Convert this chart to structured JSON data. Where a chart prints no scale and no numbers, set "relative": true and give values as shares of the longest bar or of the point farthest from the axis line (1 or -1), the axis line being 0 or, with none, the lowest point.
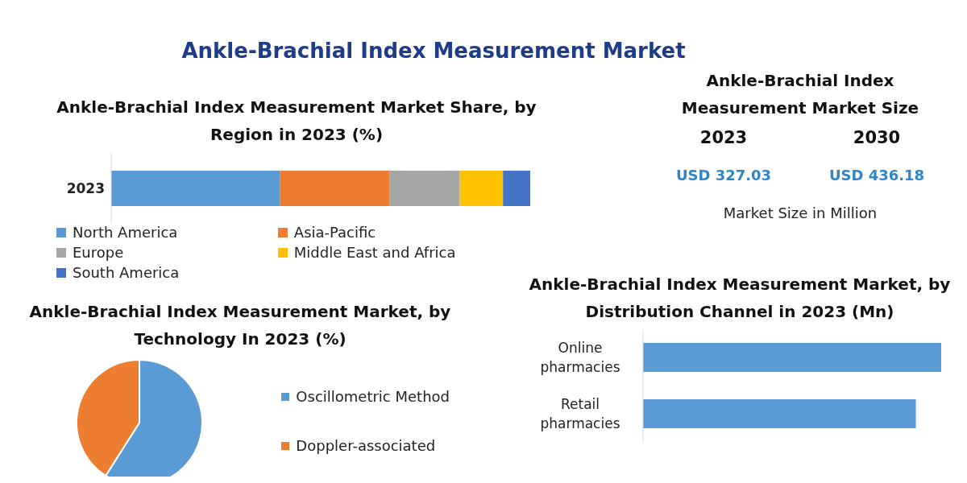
{
  "chart_data": [
    {
      "type": "other",
      "title": "Ankle-Brachial Index Measurement Market"
    },
    {
      "type": "bar",
      "title": "Ankle-Brachial Index Measurement Market Share, by Region in 2023 (%)",
      "orientation": "horizontal",
      "stacked": true,
      "relative": true,
      "categories": [
        "2023"
      ],
      "legend": "bottom",
      "series": [
        {
          "name": "North America",
          "color": "#5b9bd5",
          "values": [
            0.403
          ]
        },
        {
          "name": "Asia-Pacific",
          "color": "#ed7d31",
          "values": [
            0.261
          ]
        },
        {
          "name": "Europe",
          "color": "#a5a5a5",
          "values": [
            0.168
          ]
        },
        {
          "name": "Middle East and Africa",
          "color": "#ffc000",
          "values": [
            0.103
          ]
        },
        {
          "name": "South America",
          "color": "#4472c4",
          "values": [
            0.065
          ]
        }
      ]
    },
    {
      "type": "other",
      "title": "Ankle-Brachial Index Measurement Market Size",
      "annotations": [
        "2023",
        "2030",
        "USD 327.03",
        "USD 436.18",
        "Market Size in Million"
      ]
    },
    {
      "type": "pie",
      "title": "Ankle-Brachial Index Measurement Market, by Technology In 2023 (%)",
      "categories": [
        "Oscillometric Method",
        "Doppler-associated"
      ],
      "values": [
        59,
        41
      ],
      "colors": [
        "#5b9bd5",
        "#ed7d31"
      ],
      "legend": "right"
    },
    {
      "type": "bar",
      "title": "Ankle-Brachial Index Measurement Market, by Distribution Channel in 2023 (Mn)",
      "orientation": "horizontal",
      "relative": true,
      "categories": [
        "Online pharmacies",
        "Retail pharmacies"
      ],
      "values": [
        1,
        0.915
      ],
      "color": "#5b9bd5"
    }
  ]
}
